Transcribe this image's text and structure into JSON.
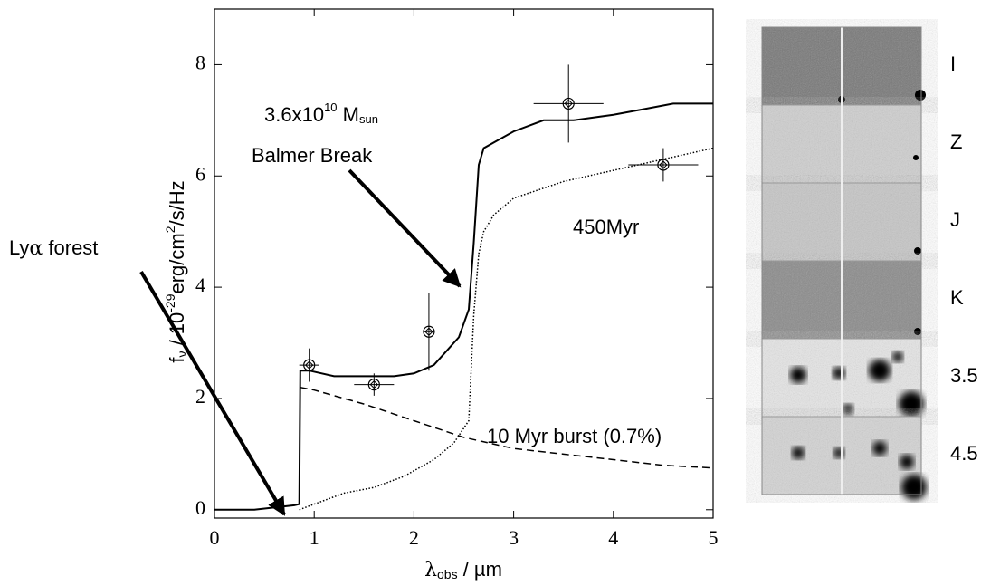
{
  "chart_data": {
    "type": "line",
    "xlim": [
      0,
      5
    ],
    "xticks": [
      0,
      1,
      2,
      3,
      4,
      5
    ],
    "ylim": [
      -0.15,
      9.0
    ],
    "yticks": [
      0,
      2,
      4,
      6,
      8
    ],
    "x_label": {
      "symbol": "λ",
      "sub": "obs",
      "rest": " / µm"
    },
    "y_label": {
      "symbol": "f",
      "sub": "ν",
      "mid": " / 10",
      "sup": "-29",
      "unit": "erg/cm",
      "unit_sup": "2",
      "unit_rest": "/s/Hz"
    },
    "annotations": {
      "mass": {
        "text": "3.6x10",
        "sup": "10",
        "unit": " M",
        "sub": "sun"
      },
      "balmer": "Balmer Break",
      "lya": {
        "pre": "Ly",
        "greek": "α",
        "post": " forest"
      }
    },
    "series": [
      {
        "color": "#000000",
        "style": "solid",
        "x": [
          0,
          0.4,
          0.8,
          0.85,
          0.86,
          0.95,
          1.2,
          1.5,
          1.8,
          2.0,
          2.2,
          2.3,
          2.45,
          2.55,
          2.6,
          2.65,
          2.7,
          2.8,
          3.0,
          3.3,
          3.6,
          4.0,
          4.3,
          4.6,
          5.0
        ],
        "values": [
          0,
          0,
          0.08,
          0.1,
          2.5,
          2.5,
          2.4,
          2.4,
          2.4,
          2.45,
          2.6,
          2.8,
          3.1,
          3.6,
          4.8,
          6.2,
          6.5,
          6.6,
          6.8,
          7.0,
          7.0,
          7.1,
          7.2,
          7.3,
          7.3
        ]
      },
      {
        "color": "#000000",
        "style": "dotted",
        "label": "450Myr",
        "x": [
          0.85,
          1.0,
          1.3,
          1.6,
          1.9,
          2.2,
          2.4,
          2.55,
          2.6,
          2.65,
          2.7,
          2.8,
          3.0,
          3.5,
          4.0,
          4.5,
          5.0
        ],
        "values": [
          0,
          0.1,
          0.3,
          0.4,
          0.6,
          0.9,
          1.2,
          1.6,
          3.5,
          4.6,
          5.0,
          5.3,
          5.6,
          5.9,
          6.1,
          6.3,
          6.5
        ]
      },
      {
        "color": "#000000",
        "style": "dashed",
        "label": "10 Myr burst (0.7%)",
        "x": [
          0.86,
          1.0,
          1.5,
          2.0,
          2.5,
          3.0,
          3.5,
          4.0,
          4.5,
          5.0
        ],
        "values": [
          2.2,
          2.15,
          1.9,
          1.6,
          1.3,
          1.1,
          1.0,
          0.9,
          0.8,
          0.75
        ]
      }
    ],
    "photometry": {
      "x": [
        0.95,
        1.6,
        2.15,
        3.55,
        4.5
      ],
      "values": [
        2.6,
        2.25,
        3.2,
        7.3,
        6.2
      ],
      "yerr": [
        0.3,
        0.2,
        0.7,
        0.7,
        0.3
      ],
      "xerr": [
        0.1,
        0.2,
        0.05,
        0.35,
        0.35
      ]
    },
    "cutouts": {
      "bands": [
        "I",
        "Z",
        "J",
        "K",
        "3.5",
        "4.5"
      ]
    }
  }
}
